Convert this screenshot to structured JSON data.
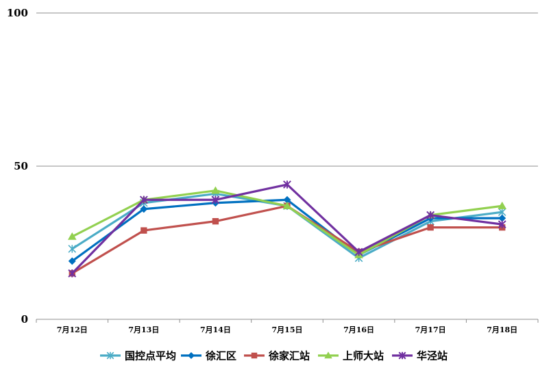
{
  "chart_data": {
    "type": "line",
    "title": "",
    "xlabel": "",
    "ylabel": "",
    "categories": [
      "7月12日",
      "7月13日",
      "7月14日",
      "7月15日",
      "7月16日",
      "7月17日",
      "7月18日"
    ],
    "ylim": [
      0,
      100
    ],
    "yticks": [
      0,
      50,
      100
    ],
    "grid": true,
    "legend_position": "bottom",
    "series": [
      {
        "name": "国控点平均",
        "color": "#4bacc6",
        "marker": "asterisk",
        "values": [
          23,
          38,
          41,
          37,
          20,
          32,
          35
        ]
      },
      {
        "name": "徐汇区",
        "color": "#0070c0",
        "marker": "diamond",
        "values": [
          19,
          36,
          38,
          39,
          21,
          33,
          33
        ]
      },
      {
        "name": "徐家汇站",
        "color": "#c0504d",
        "marker": "square",
        "values": [
          15,
          29,
          32,
          37,
          22,
          30,
          30
        ]
      },
      {
        "name": "上师大站",
        "color": "#92d050",
        "marker": "triangle",
        "values": [
          27,
          39,
          42,
          37,
          21,
          34,
          37
        ]
      },
      {
        "name": "华泾站",
        "color": "#7030a0",
        "marker": "star",
        "values": [
          15,
          39,
          39,
          44,
          22,
          34,
          31
        ]
      }
    ]
  }
}
